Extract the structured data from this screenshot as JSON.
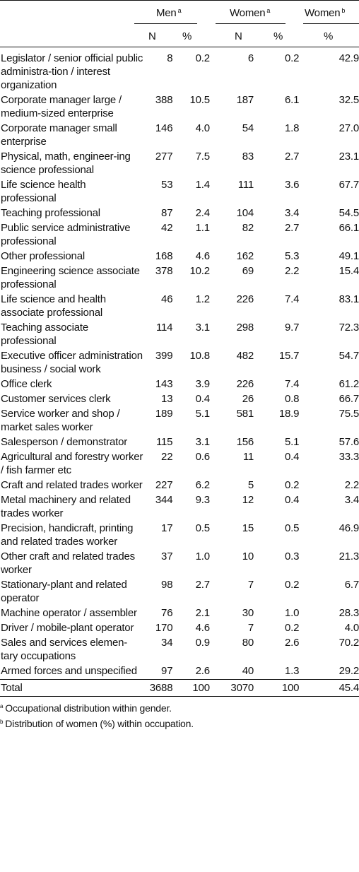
{
  "header": {
    "men": "Men",
    "men_sup": "a",
    "women": "Women",
    "women_sup": "a",
    "women2": "Women",
    "women2_sup": "b",
    "n1": "N",
    "p1": "%",
    "n2": "N",
    "p2": "%",
    "p3": "%"
  },
  "rows": [
    {
      "occ": "Legislator / senior official public administra-tion / interest organization",
      "mn": "8",
      "mp": "0.2",
      "wn": "6",
      "wp": "0.2",
      "wo": "42.9"
    },
    {
      "occ": "Corporate manager large / medium-sized enterprise",
      "mn": "388",
      "mp": "10.5",
      "wn": "187",
      "wp": "6.1",
      "wo": "32.5"
    },
    {
      "occ": "Corporate manager small enterprise",
      "mn": "146",
      "mp": "4.0",
      "wn": "54",
      "wp": "1.8",
      "wo": "27.0"
    },
    {
      "occ": "Physical, math, engineer-ing science professional",
      "mn": "277",
      "mp": "7.5",
      "wn": "83",
      "wp": "2.7",
      "wo": "23.1"
    },
    {
      "occ": "Life science health professional",
      "mn": "53",
      "mp": "1.4",
      "wn": "111",
      "wp": "3.6",
      "wo": "67.7"
    },
    {
      "occ": "Teaching professional",
      "mn": "87",
      "mp": "2.4",
      "wn": "104",
      "wp": "3.4",
      "wo": "54.5"
    },
    {
      "occ": "Public service administrative professional",
      "mn": "42",
      "mp": "1.1",
      "wn": "82",
      "wp": "2.7",
      "wo": "66.1"
    },
    {
      "occ": "Other professional",
      "mn": "168",
      "mp": "4.6",
      "wn": "162",
      "wp": "5.3",
      "wo": "49.1"
    },
    {
      "occ": "Engineering science associate professional",
      "mn": "378",
      "mp": "10.2",
      "wn": "69",
      "wp": "2.2",
      "wo": "15.4"
    },
    {
      "occ": "Life science and health associate professional",
      "mn": "46",
      "mp": "1.2",
      "wn": "226",
      "wp": "7.4",
      "wo": "83.1"
    },
    {
      "occ": "Teaching associate professional",
      "mn": "114",
      "mp": "3.1",
      "wn": "298",
      "wp": "9.7",
      "wo": "72.3"
    },
    {
      "occ": "Executive officer administration business / social work",
      "mn": "399",
      "mp": "10.8",
      "wn": "482",
      "wp": "15.7",
      "wo": "54.7"
    },
    {
      "occ": "Office clerk",
      "mn": "143",
      "mp": "3.9",
      "wn": "226",
      "wp": "7.4",
      "wo": "61.2"
    },
    {
      "occ": "Customer services clerk",
      "mn": "13",
      "mp": "0.4",
      "wn": "26",
      "wp": "0.8",
      "wo": "66.7"
    },
    {
      "occ": "Service worker and shop / market sales worker",
      "mn": "189",
      "mp": "5.1",
      "wn": "581",
      "wp": "18.9",
      "wo": "75.5"
    },
    {
      "occ": "Salesperson / demonstrator",
      "mn": "115",
      "mp": "3.1",
      "wn": "156",
      "wp": "5.1",
      "wo": "57.6"
    },
    {
      "occ": "Agricultural and forestry worker / fish farmer etc",
      "mn": "22",
      "mp": "0.6",
      "wn": "11",
      "wp": "0.4",
      "wo": "33.3"
    },
    {
      "occ": "Craft and related trades worker",
      "mn": "227",
      "mp": "6.2",
      "wn": "5",
      "wp": "0.2",
      "wo": "2.2"
    },
    {
      "occ": "Metal machinery and related trades worker",
      "mn": "344",
      "mp": "9.3",
      "wn": "12",
      "wp": "0.4",
      "wo": "3.4"
    },
    {
      "occ": "Precision, handicraft, printing and related trades worker",
      "mn": "17",
      "mp": "0.5",
      "wn": "15",
      "wp": "0.5",
      "wo": "46.9"
    },
    {
      "occ": "Other craft and related trades worker",
      "mn": "37",
      "mp": "1.0",
      "wn": "10",
      "wp": "0.3",
      "wo": "21.3"
    },
    {
      "occ": "Stationary-plant and related operator",
      "mn": "98",
      "mp": "2.7",
      "wn": "7",
      "wp": "0.2",
      "wo": "6.7"
    },
    {
      "occ": "Machine operator / assembler",
      "mn": "76",
      "mp": "2.1",
      "wn": "30",
      "wp": "1.0",
      "wo": "28.3"
    },
    {
      "occ": "Driver / mobile-plant operator",
      "mn": "170",
      "mp": "4.6",
      "wn": "7",
      "wp": "0.2",
      "wo": "4.0"
    },
    {
      "occ": "Sales and services elemen-tary occupations",
      "mn": "34",
      "mp": "0.9",
      "wn": "80",
      "wp": "2.6",
      "wo": "70.2"
    },
    {
      "occ": "Armed forces and unspecified",
      "mn": "97",
      "mp": "2.6",
      "wn": "40",
      "wp": "1.3",
      "wo": "29.2"
    }
  ],
  "total": {
    "occ": "Total",
    "mn": "3688",
    "mp": "100",
    "wn": "3070",
    "wp": "100",
    "wo": "45.4"
  },
  "notes": {
    "a_mark": "a",
    "a": "Occupational distribution within gender.",
    "b_mark": "b",
    "b": "Distribution of women (%) within occupation."
  }
}
